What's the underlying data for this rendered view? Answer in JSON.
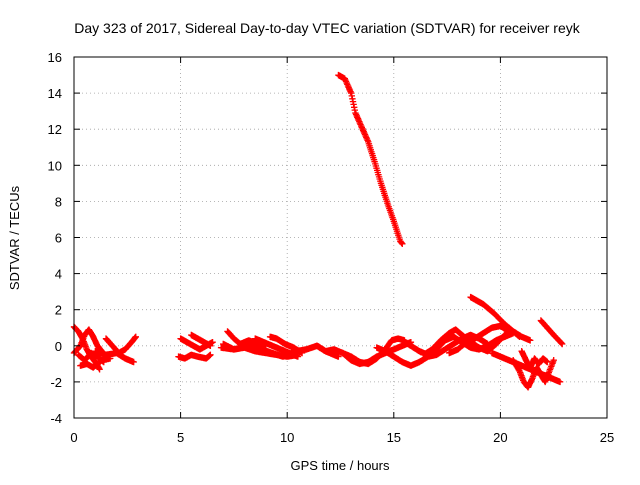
{
  "chart_data": {
    "type": "scatter",
    "title": "Day 323 of 2017, Sidereal Day-to-day VTEC variation (SDTVAR) for receiver reyk",
    "xlabel": "GPS time / hours",
    "ylabel": "SDTVAR / TECUs",
    "xlim": [
      0,
      25
    ],
    "ylim": [
      -4,
      16
    ],
    "xticks": [
      0,
      5,
      10,
      15,
      20,
      25
    ],
    "yticks": [
      -4,
      -2,
      0,
      2,
      4,
      6,
      8,
      10,
      12,
      14,
      16
    ],
    "xtick_labels": [
      "0",
      "5",
      "10",
      "15",
      "20",
      "25"
    ],
    "ytick_labels": [
      "-4",
      "-2",
      "0",
      "2",
      "4",
      "6",
      "8",
      "10",
      "12",
      "14",
      "16"
    ],
    "grid": true,
    "marker": "+",
    "series": [
      {
        "name": "SDTVAR",
        "color": "#ff0000",
        "tracks": [
          [
            [
              0.0,
              1.05
            ],
            [
              0.2,
              0.8
            ],
            [
              0.4,
              0.4
            ],
            [
              0.6,
              -0.2
            ],
            [
              0.8,
              -0.6
            ],
            [
              1.0,
              -0.9
            ],
            [
              1.2,
              -1.3
            ]
          ],
          [
            [
              0.0,
              -0.4
            ],
            [
              0.3,
              0.0
            ],
            [
              0.5,
              0.6
            ],
            [
              0.7,
              0.9
            ],
            [
              0.9,
              0.5
            ],
            [
              1.1,
              0.0
            ],
            [
              1.3,
              -0.3
            ]
          ],
          [
            [
              0.2,
              -0.5
            ],
            [
              0.5,
              -0.8
            ],
            [
              0.8,
              -0.4
            ],
            [
              1.1,
              -0.6
            ],
            [
              1.4,
              -0.9
            ]
          ],
          [
            [
              1.0,
              -0.3
            ],
            [
              1.5,
              -0.5
            ],
            [
              2.0,
              -0.4
            ],
            [
              2.4,
              -0.7
            ],
            [
              2.8,
              -0.9
            ]
          ],
          [
            [
              1.5,
              0.4
            ],
            [
              1.8,
              0.0
            ],
            [
              2.1,
              -0.4
            ],
            [
              2.4,
              -0.2
            ],
            [
              2.7,
              0.2
            ],
            [
              2.9,
              0.5
            ]
          ],
          [
            [
              0.3,
              -1.1
            ],
            [
              0.6,
              -1.0
            ],
            [
              0.9,
              -1.2
            ],
            [
              1.3,
              -0.8
            ],
            [
              1.7,
              -0.7
            ]
          ],
          [
            [
              4.9,
              -0.6
            ],
            [
              5.2,
              -0.7
            ],
            [
              5.5,
              -0.5
            ],
            [
              5.8,
              -0.6
            ],
            [
              6.2,
              -0.7
            ],
            [
              6.4,
              -0.5
            ]
          ],
          [
            [
              5.0,
              0.4
            ],
            [
              5.3,
              0.2
            ],
            [
              5.6,
              0.0
            ],
            [
              5.9,
              -0.2
            ],
            [
              6.2,
              0.0
            ],
            [
              6.5,
              0.2
            ]
          ],
          [
            [
              5.5,
              0.6
            ],
            [
              5.8,
              0.4
            ],
            [
              6.1,
              0.2
            ],
            [
              6.4,
              0.0
            ]
          ],
          [
            [
              6.9,
              -0.1
            ],
            [
              7.5,
              -0.2
            ],
            [
              8.0,
              -0.1
            ],
            [
              8.5,
              -0.3
            ],
            [
              9.0,
              -0.4
            ],
            [
              9.5,
              -0.5
            ],
            [
              10.0,
              -0.6
            ],
            [
              10.5,
              -0.5
            ]
          ],
          [
            [
              7.0,
              0.1
            ],
            [
              7.5,
              -0.2
            ],
            [
              8.2,
              0.0
            ],
            [
              8.8,
              -0.2
            ],
            [
              9.3,
              -0.4
            ],
            [
              9.8,
              -0.6
            ],
            [
              10.4,
              -0.3
            ],
            [
              10.9,
              -0.2
            ],
            [
              11.4,
              0.0
            ],
            [
              11.8,
              -0.3
            ],
            [
              12.4,
              -0.6
            ]
          ],
          [
            [
              7.2,
              0.8
            ],
            [
              7.5,
              0.4
            ],
            [
              7.8,
              0.1
            ],
            [
              8.2,
              0.3
            ],
            [
              8.6,
              0.1
            ],
            [
              9.0,
              0.0
            ]
          ],
          [
            [
              8.5,
              0.4
            ],
            [
              8.9,
              0.2
            ],
            [
              9.3,
              0.0
            ],
            [
              9.7,
              -0.2
            ],
            [
              10.1,
              -0.4
            ],
            [
              10.5,
              -0.6
            ]
          ],
          [
            [
              9.2,
              0.5
            ],
            [
              9.5,
              0.4
            ],
            [
              9.9,
              0.1
            ],
            [
              10.3,
              -0.1
            ],
            [
              10.7,
              -0.4
            ]
          ],
          [
            [
              11.4,
              0.0
            ],
            [
              11.8,
              -0.3
            ],
            [
              12.2,
              -0.2
            ],
            [
              12.6,
              -0.4
            ],
            [
              13.0,
              -0.8
            ],
            [
              13.4,
              -1.0
            ],
            [
              13.8,
              -0.9
            ],
            [
              14.2,
              -0.6
            ],
            [
              14.6,
              -0.4
            ],
            [
              15.0,
              -0.2
            ],
            [
              15.4,
              0.0
            ],
            [
              15.8,
              0.2
            ]
          ],
          [
            [
              12.6,
              -0.4
            ],
            [
              13.0,
              -0.6
            ],
            [
              13.4,
              -0.9
            ],
            [
              13.8,
              -1.0
            ],
            [
              14.2,
              -0.7
            ],
            [
              14.6,
              -0.2
            ],
            [
              14.9,
              0.3
            ],
            [
              15.2,
              0.4
            ],
            [
              15.5,
              0.3
            ]
          ],
          [
            [
              14.2,
              -0.1
            ],
            [
              14.6,
              -0.3
            ],
            [
              15.0,
              -0.6
            ],
            [
              15.4,
              -0.9
            ],
            [
              15.8,
              -1.1
            ],
            [
              16.2,
              -0.9
            ],
            [
              16.6,
              -0.6
            ],
            [
              17.0,
              -0.5
            ],
            [
              17.4,
              -0.2
            ],
            [
              17.8,
              0.1
            ],
            [
              18.2,
              0.4
            ],
            [
              18.6,
              0.6
            ],
            [
              19.0,
              0.4
            ],
            [
              19.4,
              0.1
            ]
          ],
          [
            [
              15.4,
              0.3
            ],
            [
              15.8,
              0.0
            ],
            [
              16.2,
              -0.3
            ],
            [
              16.6,
              -0.5
            ],
            [
              17.0,
              -0.2
            ],
            [
              17.4,
              0.3
            ],
            [
              17.8,
              0.5
            ],
            [
              18.2,
              0.2
            ],
            [
              18.6,
              -0.1
            ],
            [
              19.0,
              -0.2
            ],
            [
              19.4,
              0.0
            ],
            [
              19.8,
              0.3
            ],
            [
              20.2,
              0.5
            ],
            [
              20.6,
              0.7
            ]
          ],
          [
            [
              16.4,
              -0.5
            ],
            [
              16.8,
              -0.2
            ],
            [
              17.2,
              0.3
            ],
            [
              17.6,
              0.7
            ],
            [
              17.9,
              0.9
            ],
            [
              18.2,
              0.6
            ],
            [
              18.6,
              0.2
            ],
            [
              19.0,
              -0.1
            ],
            [
              19.4,
              -0.3
            ],
            [
              19.8,
              0.1
            ],
            [
              20.2,
              0.6
            ],
            [
              20.6,
              0.8
            ],
            [
              21.0,
              0.5
            ],
            [
              21.4,
              0.3
            ]
          ],
          [
            [
              17.6,
              -0.4
            ],
            [
              18.0,
              -0.2
            ],
            [
              18.4,
              0.2
            ],
            [
              18.8,
              0.4
            ],
            [
              19.2,
              0.7
            ],
            [
              19.6,
              1.0
            ],
            [
              20.0,
              1.1
            ],
            [
              20.4,
              0.8
            ]
          ],
          [
            [
              19.6,
              -0.4
            ],
            [
              20.0,
              -0.6
            ],
            [
              20.4,
              -0.8
            ],
            [
              20.8,
              -1.0
            ],
            [
              21.2,
              -1.2
            ],
            [
              21.6,
              -1.4
            ],
            [
              22.0,
              -1.6
            ],
            [
              22.4,
              -1.8
            ],
            [
              22.8,
              -2.0
            ]
          ],
          [
            [
              20.6,
              -0.8
            ],
            [
              20.9,
              -1.4
            ],
            [
              21.1,
              -2.0
            ],
            [
              21.3,
              -2.3
            ],
            [
              21.5,
              -1.8
            ],
            [
              21.7,
              -1.2
            ],
            [
              21.9,
              -1.6
            ],
            [
              22.1,
              -2.0
            ],
            [
              22.3,
              -1.4
            ],
            [
              22.5,
              -0.8
            ]
          ],
          [
            [
              21.0,
              -0.3
            ],
            [
              21.2,
              -0.8
            ],
            [
              21.4,
              -1.2
            ],
            [
              21.6,
              -0.7
            ],
            [
              21.8,
              -1.0
            ],
            [
              22.0,
              -0.7
            ],
            [
              22.2,
              -0.9
            ]
          ],
          [
            [
              18.6,
              2.7
            ],
            [
              19.2,
              2.3
            ],
            [
              19.7,
              1.8
            ],
            [
              20.2,
              1.2
            ],
            [
              20.6,
              0.8
            ],
            [
              20.9,
              0.5
            ]
          ],
          [
            [
              21.9,
              1.4
            ],
            [
              22.2,
              1.0
            ],
            [
              22.5,
              0.6
            ],
            [
              22.9,
              0.1
            ]
          ],
          [
            [
              12.4,
              15.0
            ],
            [
              12.7,
              14.8
            ],
            [
              13.0,
              14.0
            ],
            [
              13.2,
              12.9
            ],
            [
              13.5,
              12.1
            ],
            [
              13.8,
              11.3
            ],
            [
              14.1,
              10.2
            ],
            [
              14.4,
              9.0
            ],
            [
              14.7,
              7.9
            ],
            [
              15.0,
              6.9
            ],
            [
              15.3,
              5.8
            ],
            [
              15.4,
              5.65
            ]
          ]
        ]
      }
    ]
  }
}
